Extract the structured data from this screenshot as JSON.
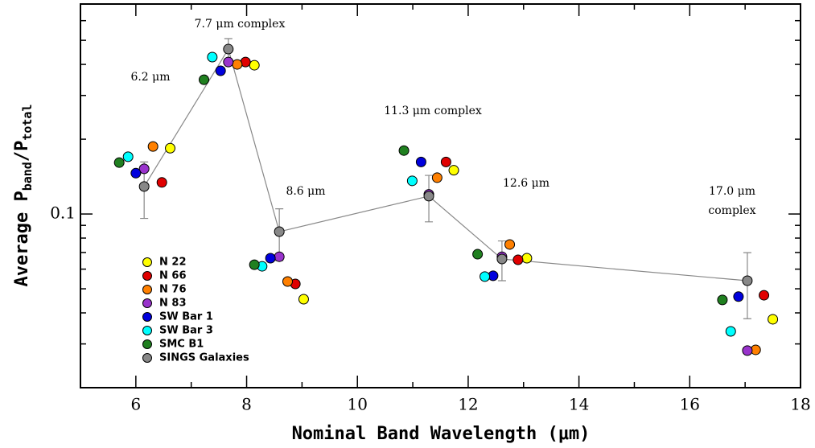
{
  "chart_data": {
    "type": "scatter",
    "log_y": true,
    "xlabel": "Nominal Band Wavelength (μm)",
    "ylabel_parts": [
      "Average P",
      "band",
      "/P",
      "total"
    ],
    "xlim": [
      5,
      18
    ],
    "xticks": [
      6,
      8,
      10,
      12,
      14,
      16,
      18
    ],
    "xminorticks": [
      5,
      7,
      9,
      11,
      13,
      15,
      17
    ],
    "ylim": [
      0.02,
      0.7
    ],
    "yticks": [
      {
        "value": 0.1,
        "label": "0.1"
      }
    ],
    "yminorticks": [
      0.03,
      0.04,
      0.05,
      0.06,
      0.07,
      0.08,
      0.09,
      0.2,
      0.3,
      0.4,
      0.5,
      0.6
    ],
    "annotations": [
      "7.7 μm complex",
      "6.2 μm",
      "11.3 μm complex",
      "8.6 μm",
      "12.6 μm",
      "17.0 μm",
      "complex"
    ],
    "series": [
      {
        "name": "N 22",
        "color": "#ffff00",
        "x": [
          6.62,
          8.14,
          9.03,
          11.74,
          13.06,
          17.5
        ],
        "values": [
          0.184,
          0.397,
          0.0454,
          0.15,
          0.0664,
          0.0377
        ]
      },
      {
        "name": "N 66",
        "color": "#e00000",
        "x": [
          6.47,
          7.98,
          8.88,
          11.6,
          12.9,
          17.34
        ],
        "values": [
          0.134,
          0.409,
          0.0523,
          0.162,
          0.0654,
          0.0471
        ]
      },
      {
        "name": "N 76",
        "color": "#ff8000",
        "x": [
          6.31,
          7.83,
          8.74,
          11.44,
          12.75,
          17.19
        ],
        "values": [
          0.187,
          0.4,
          0.0535,
          0.14,
          0.0754,
          0.0284
        ]
      },
      {
        "name": "N 83",
        "color": "#9933cc",
        "x": [
          6.15,
          7.67,
          8.59,
          11.29,
          12.61,
          17.04
        ],
        "values": [
          0.152,
          0.409,
          0.0673,
          0.12,
          0.0673,
          0.0282
        ]
      },
      {
        "name": "SW Bar 1",
        "color": "#0000dd",
        "x": [
          6.0,
          7.53,
          8.43,
          11.15,
          12.45,
          16.88
        ],
        "values": [
          0.146,
          0.377,
          0.0664,
          0.162,
          0.0564,
          0.0465
        ]
      },
      {
        "name": "SW Bar 3",
        "color": "#00ffff",
        "x": [
          5.86,
          7.38,
          8.28,
          10.99,
          12.3,
          16.74
        ],
        "values": [
          0.17,
          0.428,
          0.0616,
          0.136,
          0.056,
          0.0337
        ]
      },
      {
        "name": "SMC B1",
        "color": "#208020",
        "x": [
          5.7,
          7.23,
          8.14,
          10.84,
          12.17,
          16.59
        ],
        "values": [
          0.161,
          0.347,
          0.0625,
          0.18,
          0.0689,
          0.0451
        ]
      },
      {
        "name": "SINGS Galaxies",
        "color": "#888888",
        "x": [
          6.15,
          7.67,
          8.59,
          11.29,
          12.61,
          17.04
        ],
        "values": [
          0.129,
          0.461,
          0.0849,
          0.118,
          0.0659,
          0.0539
        ],
        "errors": [
          0.033,
          0.047,
          0.02,
          0.025,
          0.012,
          0.016
        ],
        "line": true
      }
    ]
  }
}
